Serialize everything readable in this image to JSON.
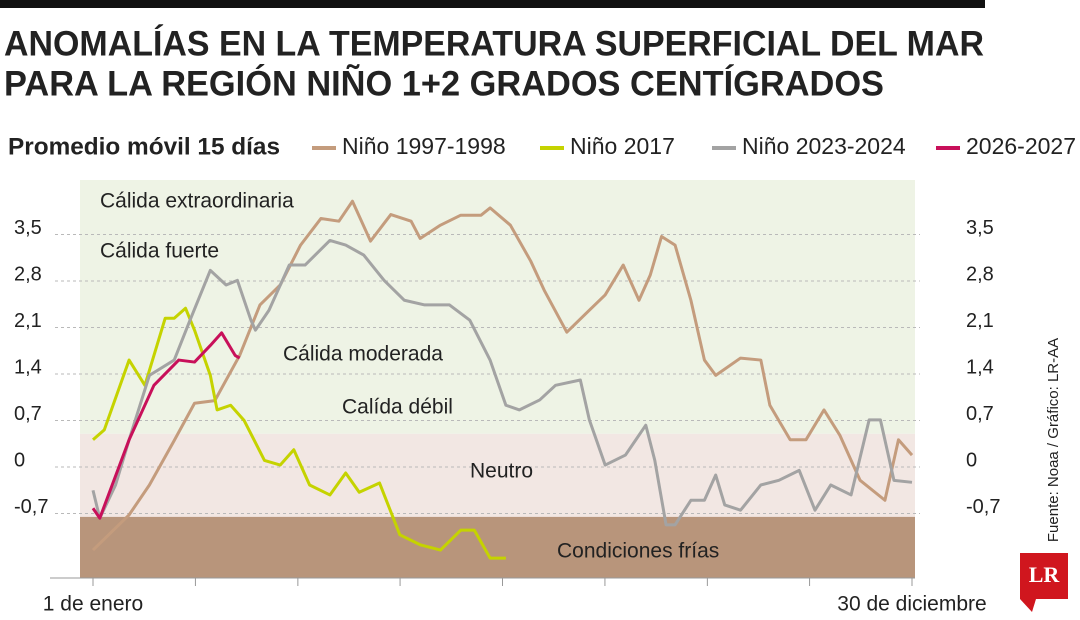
{
  "chart_data": {
    "type": "line",
    "title": [
      "ANOMALÍAS EN LA TEMPERATURA SUPERFICIAL DEL MAR",
      "PARA LA REGIÓN NIÑO 1+2 GRADOS CENTÍGRADOS"
    ],
    "legend_title": "Promedio móvil 15 días",
    "source": "Fuente: Noaa / Gráfico: LR-AA",
    "logo": "LR",
    "xlim": [
      1,
      364
    ],
    "xticks": [
      {
        "value": 1,
        "label": "1 de enero"
      },
      {
        "value": 364,
        "label": "30 de diciembre"
      }
    ],
    "xminorticks": [
      1,
      46.4,
      91.8,
      137.1,
      182.5,
      227.9,
      273.3,
      318.6,
      364
    ],
    "ylim": [
      -1.67,
      4.32
    ],
    "yticks": [
      {
        "value": 3.5,
        "label": "3,5"
      },
      {
        "value": 2.8,
        "label": "2,8"
      },
      {
        "value": 2.1,
        "label": "2,1"
      },
      {
        "value": 1.4,
        "label": "1,4"
      },
      {
        "value": 0.7,
        "label": "0,7"
      },
      0,
      {
        "value": -0.7,
        "label": "-0,7"
      }
    ],
    "grid": true,
    "zone_bounds": [
      0.5,
      -0.75
    ],
    "zone_colors": [
      "#eef3e5",
      "#f2e7e3",
      "#b8957b"
    ],
    "annotations": [
      "Cálida extraordinaria",
      "Cálida fuerte",
      "Cálida moderada",
      "Calída débil",
      "Neutro",
      "Condiciones frías"
    ],
    "series": [
      {
        "name": "Niño 1997-1998",
        "color": "#c49c7d",
        "x": [
          1,
          17,
          26,
          37,
          46,
          55,
          66,
          75,
          84,
          93,
          102,
          110,
          116,
          124,
          133,
          142,
          146,
          155,
          164,
          173,
          177,
          186,
          195,
          201,
          211,
          221,
          228,
          236,
          243,
          248,
          253,
          259,
          266,
          272,
          277,
          288,
          297,
          301,
          310,
          317,
          325,
          332,
          341,
          352,
          358,
          364
        ],
        "values": [
          -1.25,
          -0.72,
          -0.27,
          0.4,
          0.96,
          1.0,
          1.68,
          2.44,
          2.74,
          3.34,
          3.74,
          3.7,
          4.0,
          3.4,
          3.8,
          3.7,
          3.44,
          3.64,
          3.79,
          3.79,
          3.9,
          3.64,
          3.1,
          2.66,
          2.03,
          2.36,
          2.59,
          3.04,
          2.51,
          2.89,
          3.47,
          3.34,
          2.51,
          1.61,
          1.38,
          1.64,
          1.61,
          0.93,
          0.41,
          0.41,
          0.86,
          0.48,
          -0.2,
          -0.5,
          0.41,
          0.18
        ]
      },
      {
        "name": "Niño 2017",
        "color": "#c5d300",
        "x": [
          1,
          6,
          17,
          24,
          33,
          37,
          42,
          46,
          53,
          56,
          62,
          68,
          77,
          84,
          90,
          97,
          106,
          113,
          119,
          128,
          137,
          146,
          155,
          164,
          170,
          177,
          184
        ],
        "values": [
          0.41,
          0.56,
          1.61,
          1.23,
          2.24,
          2.24,
          2.39,
          2.06,
          1.38,
          0.86,
          0.93,
          0.7,
          0.1,
          0.03,
          0.26,
          -0.27,
          -0.42,
          -0.09,
          -0.38,
          -0.24,
          -1.02,
          -1.17,
          -1.25,
          -0.95,
          -0.95,
          -1.37,
          -1.37
        ]
      },
      {
        "name": "Niño 2023-2024",
        "color": "#a3a3a3",
        "x": [
          1,
          4,
          11,
          17,
          26,
          37,
          44,
          53,
          60,
          65,
          71,
          73,
          79,
          88,
          95,
          106,
          113,
          121,
          130,
          139,
          148,
          159,
          168,
          177,
          184,
          190,
          199,
          206,
          217,
          221,
          228,
          237,
          246,
          250,
          255,
          259,
          266,
          272,
          277,
          281,
          288,
          297,
          305,
          314,
          321,
          328,
          337,
          345,
          350,
          356,
          364
        ],
        "values": [
          -0.35,
          -0.77,
          -0.27,
          0.41,
          1.38,
          1.61,
          2.21,
          2.96,
          2.74,
          2.81,
          2.21,
          2.06,
          2.36,
          3.04,
          3.04,
          3.41,
          3.34,
          3.19,
          2.81,
          2.51,
          2.44,
          2.44,
          2.21,
          1.61,
          0.93,
          0.86,
          1.01,
          1.23,
          1.31,
          0.71,
          0.03,
          0.18,
          0.63,
          0.1,
          -0.87,
          -0.87,
          -0.5,
          -0.5,
          -0.12,
          -0.57,
          -0.65,
          -0.27,
          -0.2,
          -0.05,
          -0.65,
          -0.27,
          -0.42,
          0.71,
          0.71,
          -0.2,
          -0.23
        ]
      },
      {
        "name": "2026-2027",
        "color": "#c8105a",
        "x": [
          1,
          4,
          17,
          28,
          39,
          46,
          53,
          58,
          64,
          66
        ],
        "values": [
          -0.62,
          -0.77,
          0.41,
          1.23,
          1.61,
          1.58,
          1.83,
          2.02,
          1.68,
          1.64
        ]
      }
    ]
  }
}
